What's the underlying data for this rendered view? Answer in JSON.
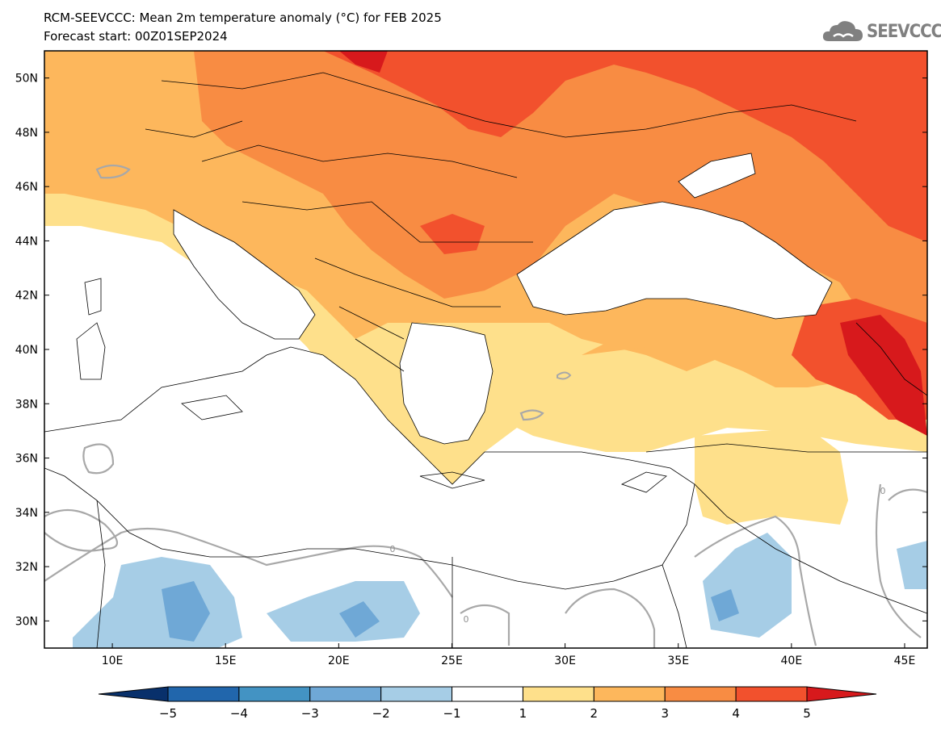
{
  "header": {
    "title": "RCM-SEEVCCC: Mean 2m temperature anomaly (°C) for FEB 2025",
    "subtitle": "Forecast start: 00Z01SEP2024"
  },
  "logo": {
    "text": "SEEVCCC",
    "icon": "cloud-icon",
    "color": "#808080"
  },
  "map": {
    "extent": {
      "lon_min": 7,
      "lon_max": 46,
      "lat_min": 29,
      "lat_max": 51
    },
    "lon_ticks": [
      {
        "value": 10,
        "label": "10E"
      },
      {
        "value": 15,
        "label": "15E"
      },
      {
        "value": 20,
        "label": "20E"
      },
      {
        "value": 25,
        "label": "25E"
      },
      {
        "value": 30,
        "label": "30E"
      },
      {
        "value": 35,
        "label": "35E"
      },
      {
        "value": 40,
        "label": "40E"
      },
      {
        "value": 45,
        "label": "45E"
      }
    ],
    "lat_ticks": [
      {
        "value": 50,
        "label": "50N"
      },
      {
        "value": 48,
        "label": "48N"
      },
      {
        "value": 46,
        "label": "46N"
      },
      {
        "value": 44,
        "label": "44N"
      },
      {
        "value": 42,
        "label": "42N"
      },
      {
        "value": 40,
        "label": "40N"
      },
      {
        "value": 38,
        "label": "38N"
      },
      {
        "value": 36,
        "label": "36N"
      },
      {
        "value": 34,
        "label": "34N"
      },
      {
        "value": 32,
        "label": "32N"
      },
      {
        "value": 30,
        "label": "30N"
      }
    ],
    "contour_labels": [
      "0",
      "0",
      "0"
    ]
  },
  "colorbar": {
    "labels": [
      "−5",
      "−4",
      "−3",
      "−2",
      "−1",
      "1",
      "2",
      "3",
      "4",
      "5"
    ],
    "colors": [
      "#08306b",
      "#2166ac",
      "#4393c3",
      "#6fa8d6",
      "#a6cde6",
      "#ffffff",
      "#fee08b",
      "#fdb75c",
      "#f88c43",
      "#f2512d",
      "#d7191c"
    ]
  }
}
